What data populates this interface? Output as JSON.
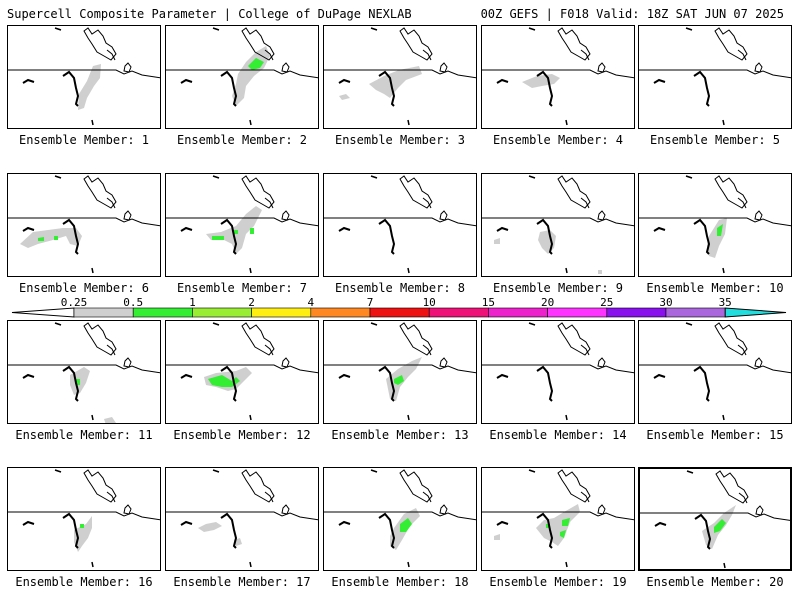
{
  "header": {
    "title": "Supercell Composite Parameter | College of DuPage NEXLAB",
    "run_info": "00Z GEFS | F018 Valid: 18Z SAT JUN 07 2025"
  },
  "colors": {
    "gray": "#cfcfcf",
    "green": "#33ee33"
  },
  "legend": {
    "labels": [
      "0.25",
      "0.5",
      "1",
      "2",
      "4",
      "7",
      "10",
      "15",
      "20",
      "25",
      "30",
      "35"
    ],
    "colors": [
      "#ffffff",
      "#cfcfcf",
      "#33ee33",
      "#99ee33",
      "#ffee11",
      "#ff8822",
      "#ee1111",
      "#ee1177",
      "#ee22cc",
      "#ff33ff",
      "#8811ee",
      "#aa66dd",
      "#22dddd"
    ]
  },
  "members": [
    {
      "label": "Ensemble Member: 1",
      "member": 1,
      "highlight": false
    },
    {
      "label": "Ensemble Member: 2",
      "member": 2,
      "highlight": false
    },
    {
      "label": "Ensemble Member: 3",
      "member": 3,
      "highlight": false
    },
    {
      "label": "Ensemble Member: 4",
      "member": 4,
      "highlight": false
    },
    {
      "label": "Ensemble Member: 5",
      "member": 5,
      "highlight": false
    },
    {
      "label": "Ensemble Member: 6",
      "member": 6,
      "highlight": false
    },
    {
      "label": "Ensemble Member: 7",
      "member": 7,
      "highlight": false
    },
    {
      "label": "Ensemble Member: 8",
      "member": 8,
      "highlight": false
    },
    {
      "label": "Ensemble Member: 9",
      "member": 9,
      "highlight": false
    },
    {
      "label": "Ensemble Member: 10",
      "member": 10,
      "highlight": false
    },
    {
      "label": "Ensemble Member: 11",
      "member": 11,
      "highlight": false
    },
    {
      "label": "Ensemble Member: 12",
      "member": 12,
      "highlight": false
    },
    {
      "label": "Ensemble Member: 13",
      "member": 13,
      "highlight": false
    },
    {
      "label": "Ensemble Member: 14",
      "member": 14,
      "highlight": false
    },
    {
      "label": "Ensemble Member: 15",
      "member": 15,
      "highlight": false
    },
    {
      "label": "Ensemble Member: 16",
      "member": 16,
      "highlight": false
    },
    {
      "label": "Ensemble Member: 17",
      "member": 17,
      "highlight": false
    },
    {
      "label": "Ensemble Member: 18",
      "member": 18,
      "highlight": false
    },
    {
      "label": "Ensemble Member: 19",
      "member": 19,
      "highlight": false
    },
    {
      "label": "Ensemble Member: 20",
      "member": 20,
      "highlight": true
    }
  ]
}
